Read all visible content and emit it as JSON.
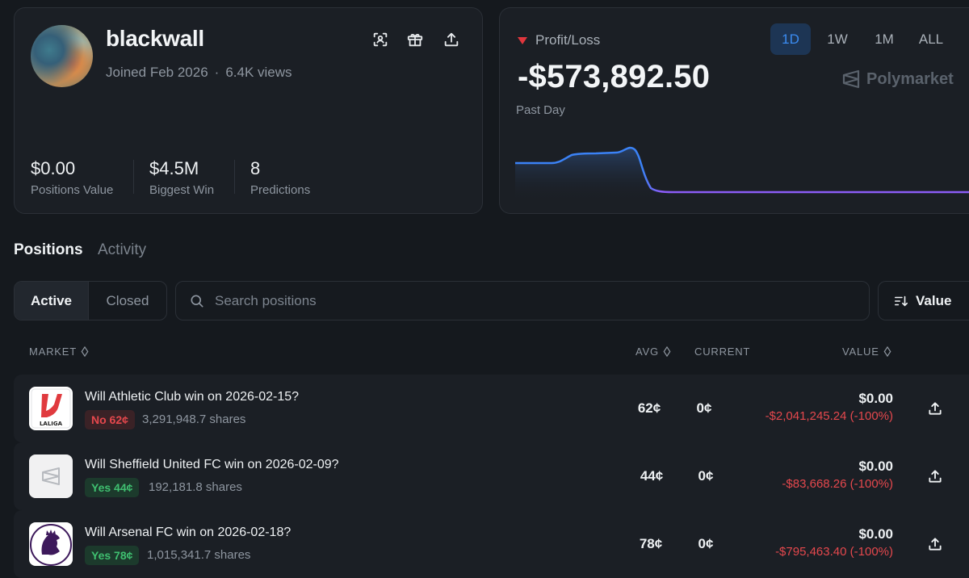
{
  "profile": {
    "username": "blackwall",
    "joined": "Joined Feb 2026",
    "separator": "·",
    "views": "6.4K views",
    "icons": [
      "scan-icon",
      "gift-icon",
      "share-icon"
    ],
    "stats": [
      {
        "value": "$0.00",
        "label": "Positions Value"
      },
      {
        "value": "$4.5M",
        "label": "Biggest Win"
      },
      {
        "value": "8",
        "label": "Predictions"
      }
    ]
  },
  "pnl": {
    "title": "Profit/Loss",
    "value": "-$573,892.50",
    "period": "Past Day",
    "ranges": [
      "1D",
      "1W",
      "1M",
      "ALL"
    ],
    "active_range": "1D",
    "brand": "Polymarket",
    "colors": {
      "line_start": "#3b82f6",
      "line_end": "#8b5cf6",
      "down": "#e0363d"
    }
  },
  "tabs": {
    "positions": "Positions",
    "activity": "Activity"
  },
  "filters": {
    "active": "Active",
    "closed": "Closed"
  },
  "search": {
    "placeholder": "Search positions"
  },
  "sort": {
    "label": "Value"
  },
  "table": {
    "headers": {
      "market": "MARKET",
      "avg": "AVG",
      "current": "CURRENT",
      "value": "VALUE"
    },
    "rows": [
      {
        "question": "Will Athletic Club win on 2026-02-15?",
        "outcome": "No 62¢",
        "outcome_type": "no",
        "shares": "3,291,948.7 shares",
        "avg": "62¢",
        "current": "0¢",
        "value": "$0.00",
        "pnl": "-$2,041,245.24 (-100%)",
        "logo": "laliga",
        "logo_text": "LALIGA"
      },
      {
        "question": "Will Sheffield United FC win on 2026-02-09?",
        "outcome": "Yes 44¢",
        "outcome_type": "yes",
        "shares": "192,181.8 shares",
        "avg": "44¢",
        "current": "0¢",
        "value": "$0.00",
        "pnl": "-$83,668.26 (-100%)",
        "logo": "polymarket"
      },
      {
        "question": "Will Arsenal FC win on 2026-02-18?",
        "outcome": "Yes 78¢",
        "outcome_type": "yes",
        "shares": "1,015,341.7 shares",
        "avg": "78¢",
        "current": "0¢",
        "value": "$0.00",
        "pnl": "-$795,463.40 (-100%)",
        "logo": "premier-league"
      }
    ]
  }
}
